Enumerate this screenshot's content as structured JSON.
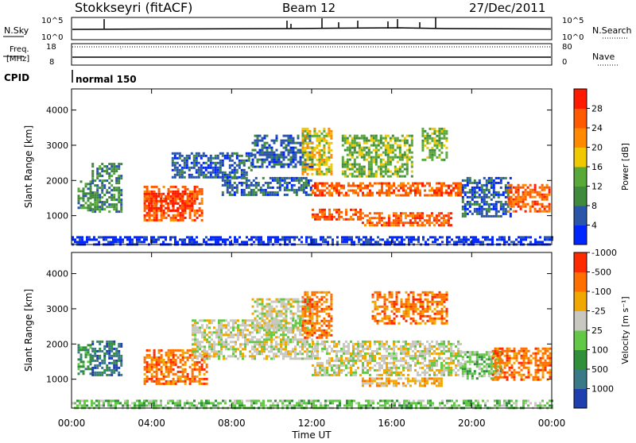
{
  "header": {
    "station": "Stokkseyri (fitACF)",
    "beam": "Beam 12",
    "date": "27/Dec/2011"
  },
  "noise_panel": {
    "left_label": "N.Sky",
    "right_label": "N.Search",
    "left_ticks": [
      "10^5",
      "10^0"
    ],
    "right_ticks": [
      "10^5",
      "10^0"
    ]
  },
  "freq_panel": {
    "left_label_1": "Freq.",
    "left_label_2": "[MHz]",
    "right_label": "Nave",
    "left_ticks": [
      "18",
      "8"
    ],
    "right_ticks": [
      "80",
      "0"
    ]
  },
  "cpid": {
    "label": "CPID",
    "value": "normal 150"
  },
  "colors": {
    "axis": "#000000",
    "gray": "#c8c8c0"
  },
  "chart_data": [
    {
      "type": "heatmap",
      "name": "power",
      "ylabel": "Slant Range [km]",
      "yticks": [
        1000,
        2000,
        3000,
        4000
      ],
      "ylim": [
        180,
        4600
      ],
      "xlim_hours": [
        0,
        24
      ],
      "colorbar": {
        "title": "Power [dB]",
        "ticks": [
          "4",
          "8",
          "12",
          "16",
          "20",
          "24",
          "28"
        ],
        "colors": [
          "#0026ff",
          "#2a55a8",
          "#3f8a3c",
          "#58a83a",
          "#f0c800",
          "#ff8a00",
          "#ff5a00",
          "#ff1a00"
        ]
      },
      "regions": [
        {
          "x": [
            0.3,
            0.9
          ],
          "y": [
            1150,
            2000
          ],
          "level": 2
        },
        {
          "x": [
            1.0,
            2.5
          ],
          "y": [
            1100,
            2500
          ],
          "level": 2
        },
        {
          "x": [
            3.6,
            6.5
          ],
          "y": [
            900,
            1850
          ],
          "level": 6
        },
        {
          "x": [
            3.7,
            6.0
          ],
          "y": [
            1150,
            1650
          ],
          "level": 7
        },
        {
          "x": [
            5.0,
            9.0
          ],
          "y": [
            2100,
            2800
          ],
          "level": 1
        },
        {
          "x": [
            7.5,
            12.0
          ],
          "y": [
            1600,
            2100
          ],
          "level": 1
        },
        {
          "x": [
            9.0,
            12.0
          ],
          "y": [
            2400,
            3300
          ],
          "level": 1
        },
        {
          "x": [
            11.5,
            13.0
          ],
          "y": [
            2200,
            3500
          ],
          "level": 4
        },
        {
          "x": [
            12.0,
            14.5
          ],
          "y": [
            900,
            1200
          ],
          "level": 6
        },
        {
          "x": [
            12.0,
            19.5
          ],
          "y": [
            1550,
            1950
          ],
          "level": 6
        },
        {
          "x": [
            13.5,
            17.0
          ],
          "y": [
            2100,
            3300
          ],
          "level": 3
        },
        {
          "x": [
            14.5,
            19.0
          ],
          "y": [
            700,
            1100
          ],
          "level": 6
        },
        {
          "x": [
            17.5,
            18.7
          ],
          "y": [
            2600,
            3500
          ],
          "level": 3
        },
        {
          "x": [
            19.5,
            22.0
          ],
          "y": [
            1000,
            2100
          ],
          "level": 1
        },
        {
          "x": [
            21.8,
            23.9
          ],
          "y": [
            1150,
            1900
          ],
          "level": 6
        },
        {
          "x": [
            0.0,
            24.0
          ],
          "y": [
            180,
            420
          ],
          "level": 0
        }
      ]
    },
    {
      "type": "heatmap",
      "name": "velocity",
      "ylabel": "Slant Range [km]",
      "yticks": [
        1000,
        2000,
        3000,
        4000
      ],
      "ylim": [
        180,
        4600
      ],
      "xlim_hours": [
        0,
        24
      ],
      "xticks": [
        "00:00",
        "04:00",
        "08:00",
        "12:00",
        "16:00",
        "20:00",
        "00:00"
      ],
      "xlabel": "Time UT",
      "colorbar": {
        "title": "Velocity [m s⁻¹]",
        "ticks": [
          "1000",
          "500",
          "100",
          "25",
          "-25",
          "-100",
          "-500",
          "-1000"
        ],
        "colors": [
          "#1f3fb0",
          "#3a7a86",
          "#2f8f3a",
          "#63c845",
          "#c8c8c0",
          "#f0a800",
          "#ff7000",
          "#ff2a00"
        ]
      },
      "regions": [
        {
          "x": [
            0.3,
            0.9
          ],
          "y": [
            1150,
            2000
          ],
          "level": 2
        },
        {
          "x": [
            1.0,
            2.5
          ],
          "y": [
            1100,
            2100
          ],
          "level": 1
        },
        {
          "x": [
            3.6,
            6.8
          ],
          "y": [
            900,
            1850
          ],
          "level": 6
        },
        {
          "x": [
            6.0,
            12.0
          ],
          "y": [
            1600,
            2700
          ],
          "level": 4
        },
        {
          "x": [
            9.0,
            12.0
          ],
          "y": [
            2400,
            3300
          ],
          "level": 4
        },
        {
          "x": [
            11.5,
            13.0
          ],
          "y": [
            2200,
            3500
          ],
          "level": 6
        },
        {
          "x": [
            12.0,
            19.5
          ],
          "y": [
            1100,
            2100
          ],
          "level": 4
        },
        {
          "x": [
            14.5,
            18.5
          ],
          "y": [
            800,
            1050
          ],
          "level": 5
        },
        {
          "x": [
            15.0,
            18.7
          ],
          "y": [
            2600,
            3500
          ],
          "level": 6
        },
        {
          "x": [
            19.5,
            21.5
          ],
          "y": [
            1000,
            1800
          ],
          "level": 3
        },
        {
          "x": [
            21.0,
            23.9
          ],
          "y": [
            1000,
            1900
          ],
          "level": 6
        },
        {
          "x": [
            0.0,
            24.0
          ],
          "y": [
            180,
            420
          ],
          "level": 3
        }
      ]
    }
  ]
}
